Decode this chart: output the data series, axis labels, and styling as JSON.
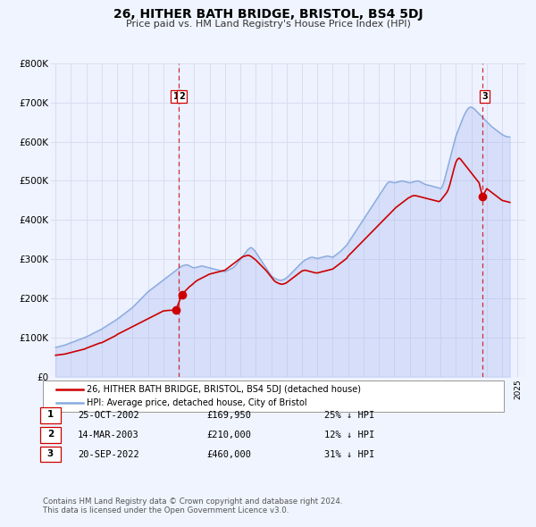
{
  "title": "26, HITHER BATH BRIDGE, BRISTOL, BS4 5DJ",
  "subtitle": "Price paid vs. HM Land Registry's House Price Index (HPI)",
  "legend_line1": "26, HITHER BATH BRIDGE, BRISTOL, BS4 5DJ (detached house)",
  "legend_line2": "HPI: Average price, detached house, City of Bristol",
  "footer1": "Contains HM Land Registry data © Crown copyright and database right 2024.",
  "footer2": "This data is licensed under the Open Government Licence v3.0.",
  "price_color": "#cc0000",
  "hpi_color": "#88aadd",
  "hpi_fill_color": "#aabbee",
  "background_color": "#f0f4ff",
  "plot_bg": "#eef2ff",
  "grid_color": "#d8ddf0",
  "ylim": [
    0,
    800000
  ],
  "yticks": [
    0,
    100000,
    200000,
    300000,
    400000,
    500000,
    600000,
    700000,
    800000
  ],
  "ytick_labels": [
    "£0",
    "£100K",
    "£200K",
    "£300K",
    "£400K",
    "£500K",
    "£600K",
    "£700K",
    "£800K"
  ],
  "xlim_start": 1994.7,
  "xlim_end": 2025.5,
  "transactions": [
    {
      "num": 1,
      "date_str": "25-OCT-2002",
      "x": 2002.81,
      "price": 169950,
      "pct": "25%"
    },
    {
      "num": 2,
      "date_str": "14-MAR-2003",
      "x": 2003.21,
      "price": 210000,
      "pct": "12%"
    },
    {
      "num": 3,
      "date_str": "20-SEP-2022",
      "x": 2022.72,
      "price": 460000,
      "pct": "31%"
    }
  ],
  "vline_groups": [
    {
      "x": 2003.0,
      "nums": [
        1,
        2
      ]
    },
    {
      "x": 2022.72,
      "nums": [
        3
      ]
    }
  ],
  "price_series_x": [
    1995.0,
    1995.1,
    1995.2,
    1995.3,
    1995.4,
    1995.5,
    1995.6,
    1995.7,
    1995.8,
    1995.9,
    1996.0,
    1996.1,
    1996.2,
    1996.3,
    1996.4,
    1996.5,
    1996.6,
    1996.7,
    1996.8,
    1996.9,
    1997.0,
    1997.1,
    1997.2,
    1997.3,
    1997.4,
    1997.5,
    1997.6,
    1997.7,
    1997.8,
    1997.9,
    1998.0,
    1998.1,
    1998.2,
    1998.3,
    1998.4,
    1998.5,
    1998.6,
    1998.7,
    1998.8,
    1998.9,
    1999.0,
    1999.1,
    1999.2,
    1999.3,
    1999.4,
    1999.5,
    1999.6,
    1999.7,
    1999.8,
    1999.9,
    2000.0,
    2000.1,
    2000.2,
    2000.3,
    2000.4,
    2000.5,
    2000.6,
    2000.7,
    2000.8,
    2000.9,
    2001.0,
    2001.1,
    2001.2,
    2001.3,
    2001.4,
    2001.5,
    2001.6,
    2001.7,
    2001.8,
    2001.9,
    2002.0,
    2002.1,
    2002.2,
    2002.3,
    2002.4,
    2002.5,
    2002.6,
    2002.7,
    2002.81,
    2003.21,
    2003.3,
    2003.4,
    2003.5,
    2003.6,
    2003.7,
    2003.8,
    2003.9,
    2004.0,
    2004.1,
    2004.2,
    2004.3,
    2004.4,
    2004.5,
    2004.6,
    2004.7,
    2004.8,
    2004.9,
    2005.0,
    2005.1,
    2005.2,
    2005.3,
    2005.4,
    2005.5,
    2005.6,
    2005.7,
    2005.8,
    2005.9,
    2006.0,
    2006.1,
    2006.2,
    2006.3,
    2006.4,
    2006.5,
    2006.6,
    2006.7,
    2006.8,
    2006.9,
    2007.0,
    2007.1,
    2007.2,
    2007.3,
    2007.4,
    2007.5,
    2007.6,
    2007.7,
    2007.8,
    2007.9,
    2008.0,
    2008.1,
    2008.2,
    2008.3,
    2008.4,
    2008.5,
    2008.6,
    2008.7,
    2008.8,
    2008.9,
    2009.0,
    2009.1,
    2009.2,
    2009.3,
    2009.4,
    2009.5,
    2009.6,
    2009.7,
    2009.8,
    2009.9,
    2010.0,
    2010.1,
    2010.2,
    2010.3,
    2010.4,
    2010.5,
    2010.6,
    2010.7,
    2010.8,
    2010.9,
    2011.0,
    2011.1,
    2011.2,
    2011.3,
    2011.4,
    2011.5,
    2011.6,
    2011.7,
    2011.8,
    2011.9,
    2012.0,
    2012.1,
    2012.2,
    2012.3,
    2012.4,
    2012.5,
    2012.6,
    2012.7,
    2012.8,
    2012.9,
    2013.0,
    2013.1,
    2013.2,
    2013.3,
    2013.4,
    2013.5,
    2013.6,
    2013.7,
    2013.8,
    2013.9,
    2014.0,
    2014.1,
    2014.2,
    2014.3,
    2014.4,
    2014.5,
    2014.6,
    2014.7,
    2014.8,
    2014.9,
    2015.0,
    2015.1,
    2015.2,
    2015.3,
    2015.4,
    2015.5,
    2015.6,
    2015.7,
    2015.8,
    2015.9,
    2016.0,
    2016.1,
    2016.2,
    2016.3,
    2016.4,
    2016.5,
    2016.6,
    2016.7,
    2016.8,
    2016.9,
    2017.0,
    2017.1,
    2017.2,
    2017.3,
    2017.4,
    2017.5,
    2017.6,
    2017.7,
    2017.8,
    2017.9,
    2018.0,
    2018.1,
    2018.2,
    2018.3,
    2018.4,
    2018.5,
    2018.6,
    2018.7,
    2018.8,
    2018.9,
    2019.0,
    2019.1,
    2019.2,
    2019.3,
    2019.4,
    2019.5,
    2019.6,
    2019.7,
    2019.8,
    2019.9,
    2020.0,
    2020.1,
    2020.2,
    2020.3,
    2020.4,
    2020.5,
    2020.6,
    2020.7,
    2020.8,
    2020.9,
    2021.0,
    2021.1,
    2021.2,
    2021.3,
    2021.4,
    2021.5,
    2021.6,
    2021.7,
    2021.8,
    2021.9,
    2022.0,
    2022.1,
    2022.2,
    2022.3,
    2022.4,
    2022.5,
    2022.72,
    2023.0,
    2023.1,
    2023.2,
    2023.3,
    2023.4,
    2023.5,
    2023.6,
    2023.7,
    2023.8,
    2023.9,
    2024.0,
    2024.1,
    2024.2,
    2024.3,
    2024.4,
    2024.5
  ],
  "price_series_y": [
    55000,
    55500,
    56000,
    56500,
    57000,
    57500,
    58000,
    59000,
    60000,
    61000,
    62000,
    63000,
    64000,
    65000,
    66000,
    67000,
    68000,
    69000,
    70000,
    71000,
    73000,
    74500,
    76000,
    77500,
    79000,
    80500,
    82000,
    83500,
    85000,
    86500,
    87000,
    89000,
    91000,
    93000,
    95000,
    97000,
    99000,
    101000,
    103000,
    105000,
    108000,
    110000,
    112000,
    114000,
    116000,
    118000,
    120000,
    122000,
    124000,
    126000,
    128000,
    130000,
    132000,
    134000,
    136000,
    138000,
    140000,
    142000,
    144000,
    146000,
    148000,
    150000,
    152000,
    154000,
    156000,
    158000,
    160000,
    162000,
    164000,
    166000,
    168000,
    168500,
    169000,
    169300,
    169600,
    169700,
    169750,
    169800,
    169950,
    210000,
    215000,
    218000,
    222000,
    226000,
    230000,
    233000,
    236000,
    240000,
    243000,
    246000,
    248000,
    250000,
    252000,
    254000,
    256000,
    258000,
    260000,
    262000,
    263000,
    264000,
    265000,
    266000,
    267000,
    268000,
    269000,
    270000,
    271000,
    272000,
    275000,
    278000,
    281000,
    284000,
    287000,
    290000,
    293000,
    296000,
    299000,
    302000,
    305000,
    307000,
    308000,
    309000,
    310000,
    309000,
    307000,
    304000,
    301000,
    298000,
    294000,
    290000,
    286000,
    282000,
    278000,
    274000,
    270000,
    265000,
    260000,
    255000,
    250000,
    245000,
    242000,
    240000,
    238000,
    237000,
    236000,
    237000,
    238000,
    240000,
    243000,
    246000,
    249000,
    252000,
    255000,
    258000,
    261000,
    264000,
    267000,
    270000,
    271000,
    272000,
    271000,
    270000,
    269000,
    268000,
    267000,
    266000,
    265000,
    265000,
    266000,
    267000,
    268000,
    269000,
    270000,
    271000,
    272000,
    273000,
    274000,
    275000,
    278000,
    281000,
    284000,
    287000,
    290000,
    293000,
    296000,
    299000,
    302000,
    308000,
    312000,
    316000,
    320000,
    324000,
    328000,
    332000,
    336000,
    340000,
    344000,
    348000,
    352000,
    356000,
    360000,
    364000,
    368000,
    372000,
    376000,
    380000,
    384000,
    388000,
    392000,
    396000,
    400000,
    404000,
    408000,
    412000,
    416000,
    420000,
    424000,
    428000,
    432000,
    435000,
    438000,
    441000,
    444000,
    447000,
    450000,
    453000,
    456000,
    458000,
    460000,
    462000,
    462000,
    462000,
    461000,
    460000,
    459000,
    458000,
    457000,
    456000,
    455000,
    454000,
    453000,
    452000,
    451000,
    450000,
    449000,
    448000,
    447000,
    450000,
    455000,
    460000,
    465000,
    470000,
    478000,
    490000,
    505000,
    520000,
    535000,
    548000,
    555000,
    558000,
    555000,
    550000,
    545000,
    540000,
    535000,
    530000,
    525000,
    520000,
    515000,
    510000,
    505000,
    500000,
    495000,
    460000,
    480000,
    477000,
    474000,
    471000,
    468000,
    465000,
    462000,
    459000,
    456000,
    453000,
    450000,
    449000,
    448000,
    447000,
    446000,
    445000
  ],
  "hpi_series_x": [
    1995.0,
    1995.1,
    1995.2,
    1995.3,
    1995.4,
    1995.5,
    1995.6,
    1995.7,
    1995.8,
    1995.9,
    1996.0,
    1996.1,
    1996.2,
    1996.3,
    1996.4,
    1996.5,
    1996.6,
    1996.7,
    1996.8,
    1996.9,
    1997.0,
    1997.1,
    1997.2,
    1997.3,
    1997.4,
    1997.5,
    1997.6,
    1997.7,
    1997.8,
    1997.9,
    1998.0,
    1998.1,
    1998.2,
    1998.3,
    1998.4,
    1998.5,
    1998.6,
    1998.7,
    1998.8,
    1998.9,
    1999.0,
    1999.1,
    1999.2,
    1999.3,
    1999.4,
    1999.5,
    1999.6,
    1999.7,
    1999.8,
    1999.9,
    2000.0,
    2000.1,
    2000.2,
    2000.3,
    2000.4,
    2000.5,
    2000.6,
    2000.7,
    2000.8,
    2000.9,
    2001.0,
    2001.1,
    2001.2,
    2001.3,
    2001.4,
    2001.5,
    2001.6,
    2001.7,
    2001.8,
    2001.9,
    2002.0,
    2002.1,
    2002.2,
    2002.3,
    2002.4,
    2002.5,
    2002.6,
    2002.7,
    2002.8,
    2002.9,
    2003.0,
    2003.1,
    2003.2,
    2003.3,
    2003.4,
    2003.5,
    2003.6,
    2003.7,
    2003.8,
    2003.9,
    2004.0,
    2004.1,
    2004.2,
    2004.3,
    2004.4,
    2004.5,
    2004.6,
    2004.7,
    2004.8,
    2004.9,
    2005.0,
    2005.1,
    2005.2,
    2005.3,
    2005.4,
    2005.5,
    2005.6,
    2005.7,
    2005.8,
    2005.9,
    2006.0,
    2006.1,
    2006.2,
    2006.3,
    2006.4,
    2006.5,
    2006.6,
    2006.7,
    2006.8,
    2006.9,
    2007.0,
    2007.1,
    2007.2,
    2007.3,
    2007.4,
    2007.5,
    2007.6,
    2007.7,
    2007.8,
    2007.9,
    2008.0,
    2008.1,
    2008.2,
    2008.3,
    2008.4,
    2008.5,
    2008.6,
    2008.7,
    2008.8,
    2008.9,
    2009.0,
    2009.1,
    2009.2,
    2009.3,
    2009.4,
    2009.5,
    2009.6,
    2009.7,
    2009.8,
    2009.9,
    2010.0,
    2010.1,
    2010.2,
    2010.3,
    2010.4,
    2010.5,
    2010.6,
    2010.7,
    2010.8,
    2010.9,
    2011.0,
    2011.1,
    2011.2,
    2011.3,
    2011.4,
    2011.5,
    2011.6,
    2011.7,
    2011.8,
    2011.9,
    2012.0,
    2012.1,
    2012.2,
    2012.3,
    2012.4,
    2012.5,
    2012.6,
    2012.7,
    2012.8,
    2012.9,
    2013.0,
    2013.1,
    2013.2,
    2013.3,
    2013.4,
    2013.5,
    2013.6,
    2013.7,
    2013.8,
    2013.9,
    2014.0,
    2014.1,
    2014.2,
    2014.3,
    2014.4,
    2014.5,
    2014.6,
    2014.7,
    2014.8,
    2014.9,
    2015.0,
    2015.1,
    2015.2,
    2015.3,
    2015.4,
    2015.5,
    2015.6,
    2015.7,
    2015.8,
    2015.9,
    2016.0,
    2016.1,
    2016.2,
    2016.3,
    2016.4,
    2016.5,
    2016.6,
    2016.7,
    2016.8,
    2016.9,
    2017.0,
    2017.1,
    2017.2,
    2017.3,
    2017.4,
    2017.5,
    2017.6,
    2017.7,
    2017.8,
    2017.9,
    2018.0,
    2018.1,
    2018.2,
    2018.3,
    2018.4,
    2018.5,
    2018.6,
    2018.7,
    2018.8,
    2018.9,
    2019.0,
    2019.1,
    2019.2,
    2019.3,
    2019.4,
    2019.5,
    2019.6,
    2019.7,
    2019.8,
    2019.9,
    2020.0,
    2020.1,
    2020.2,
    2020.3,
    2020.4,
    2020.5,
    2020.6,
    2020.7,
    2020.8,
    2020.9,
    2021.0,
    2021.1,
    2021.2,
    2021.3,
    2021.4,
    2021.5,
    2021.6,
    2021.7,
    2021.8,
    2021.9,
    2022.0,
    2022.1,
    2022.2,
    2022.3,
    2022.4,
    2022.5,
    2022.6,
    2022.7,
    2022.8,
    2022.9,
    2023.0,
    2023.1,
    2023.2,
    2023.3,
    2023.4,
    2023.5,
    2023.6,
    2023.7,
    2023.8,
    2023.9,
    2024.0,
    2024.1,
    2024.2,
    2024.3,
    2024.4,
    2024.5
  ],
  "hpi_series_y": [
    75000,
    76000,
    77000,
    78000,
    79000,
    80000,
    81000,
    82500,
    84000,
    85500,
    87000,
    88500,
    90000,
    91500,
    93000,
    94500,
    96000,
    97500,
    99000,
    100500,
    102000,
    104000,
    106000,
    108000,
    110000,
    112000,
    114000,
    116000,
    118000,
    120000,
    122000,
    124500,
    127000,
    129500,
    132000,
    134500,
    137000,
    139500,
    142000,
    144500,
    147000,
    150000,
    153000,
    156000,
    159000,
    162000,
    165000,
    168000,
    171000,
    174000,
    177000,
    181000,
    185000,
    189000,
    193000,
    197000,
    201000,
    205000,
    209000,
    213000,
    217000,
    220000,
    223000,
    226000,
    229000,
    232000,
    235000,
    238000,
    241000,
    244000,
    247000,
    250000,
    253000,
    256000,
    259000,
    262000,
    265000,
    268000,
    271000,
    274000,
    277000,
    280000,
    283000,
    284000,
    285000,
    286000,
    285000,
    283000,
    281000,
    279000,
    278000,
    279000,
    280000,
    281000,
    282000,
    283000,
    282000,
    281000,
    280000,
    279000,
    278000,
    277000,
    276000,
    275000,
    274000,
    273000,
    272000,
    271000,
    270000,
    269000,
    268000,
    270000,
    272000,
    274000,
    276000,
    278000,
    281000,
    285000,
    290000,
    295000,
    300000,
    305000,
    310000,
    315000,
    320000,
    325000,
    328000,
    330000,
    327000,
    323000,
    318000,
    312000,
    306000,
    300000,
    294000,
    288000,
    282000,
    276000,
    270000,
    264000,
    258000,
    255000,
    252000,
    250000,
    248000,
    247000,
    246000,
    247000,
    248000,
    250000,
    253000,
    256000,
    260000,
    264000,
    268000,
    272000,
    276000,
    280000,
    284000,
    288000,
    292000,
    295000,
    298000,
    300000,
    302000,
    304000,
    305000,
    305000,
    304000,
    303000,
    302000,
    303000,
    304000,
    305000,
    306000,
    307000,
    308000,
    308000,
    307000,
    306000,
    305000,
    308000,
    311000,
    314000,
    317000,
    320000,
    324000,
    328000,
    332000,
    336000,
    342000,
    348000,
    354000,
    360000,
    366000,
    372000,
    378000,
    384000,
    390000,
    396000,
    402000,
    408000,
    414000,
    420000,
    426000,
    432000,
    438000,
    444000,
    450000,
    456000,
    462000,
    468000,
    474000,
    480000,
    486000,
    492000,
    496000,
    498000,
    497000,
    496000,
    495000,
    496000,
    497000,
    498000,
    499000,
    500000,
    499000,
    498000,
    497000,
    496000,
    495000,
    496000,
    497000,
    498000,
    499000,
    500000,
    499000,
    497000,
    495000,
    493000,
    491000,
    490000,
    489000,
    488000,
    487000,
    486000,
    485000,
    484000,
    483000,
    482000,
    480000,
    485000,
    495000,
    510000,
    525000,
    540000,
    555000,
    570000,
    585000,
    600000,
    615000,
    625000,
    635000,
    645000,
    655000,
    665000,
    673000,
    680000,
    685000,
    688000,
    688000,
    686000,
    683000,
    679000,
    675000,
    671000,
    667000,
    663000,
    659000,
    655000,
    651000,
    647000,
    643000,
    639000,
    636000,
    633000,
    630000,
    627000,
    624000,
    621000,
    618000,
    616000,
    614000,
    613000,
    612000,
    612000
  ]
}
